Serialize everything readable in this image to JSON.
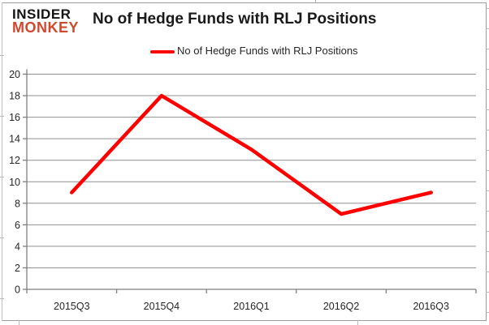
{
  "logo": {
    "line1": "INSIDER",
    "line2": "MONKEY",
    "color1": "#141414",
    "color2": "#d0492e"
  },
  "chart_data": {
    "type": "line",
    "title": "No of Hedge Funds with RLJ Positions",
    "categories": [
      "2015Q3",
      "2015Q4",
      "2016Q1",
      "2016Q2",
      "2016Q3"
    ],
    "series": [
      {
        "name": "No of Hedge Funds with RLJ Positions",
        "values": [
          9,
          18,
          13,
          7,
          9
        ],
        "color": "#fe0000"
      }
    ],
    "xlabel": "",
    "ylabel": "",
    "ylim": [
      0,
      20
    ],
    "ytick_step": 2,
    "grid": true,
    "legend_position": "top-center"
  },
  "colors": {
    "gridline": "#909090",
    "axis": "#7f7f7f",
    "tick_label": "#262626",
    "frame": "#9c9c9c"
  }
}
